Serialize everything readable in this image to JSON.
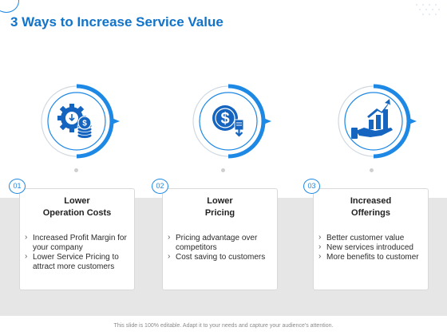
{
  "slide": {
    "title": "3 Ways to Increase Service Value",
    "footer": "This slide is 100% editable. Adapt it to your needs and capture your audience's attention."
  },
  "colors": {
    "accent": "#1e88e5",
    "title": "#1173c9",
    "band": "#e6e6e6"
  },
  "items": [
    {
      "number": "01",
      "icon": "gear-coins-icon",
      "title_line1": "Lower",
      "title_line2": "Operation Costs",
      "bullets": [
        "Increased Profit Margin for your company",
        "Lower Service Pricing to attract more customers"
      ]
    },
    {
      "number": "02",
      "icon": "dollar-coin-down-icon",
      "title_line1": "Lower",
      "title_line2": "Pricing",
      "bullets": [
        "Pricing advantage over competitors",
        "Cost saving to customers"
      ]
    },
    {
      "number": "03",
      "icon": "hand-growth-chart-icon",
      "title_line1": "Increased",
      "title_line2": "Offerings",
      "bullets": [
        "Better customer value",
        "New services introduced",
        "More benefits to customer"
      ]
    }
  ]
}
